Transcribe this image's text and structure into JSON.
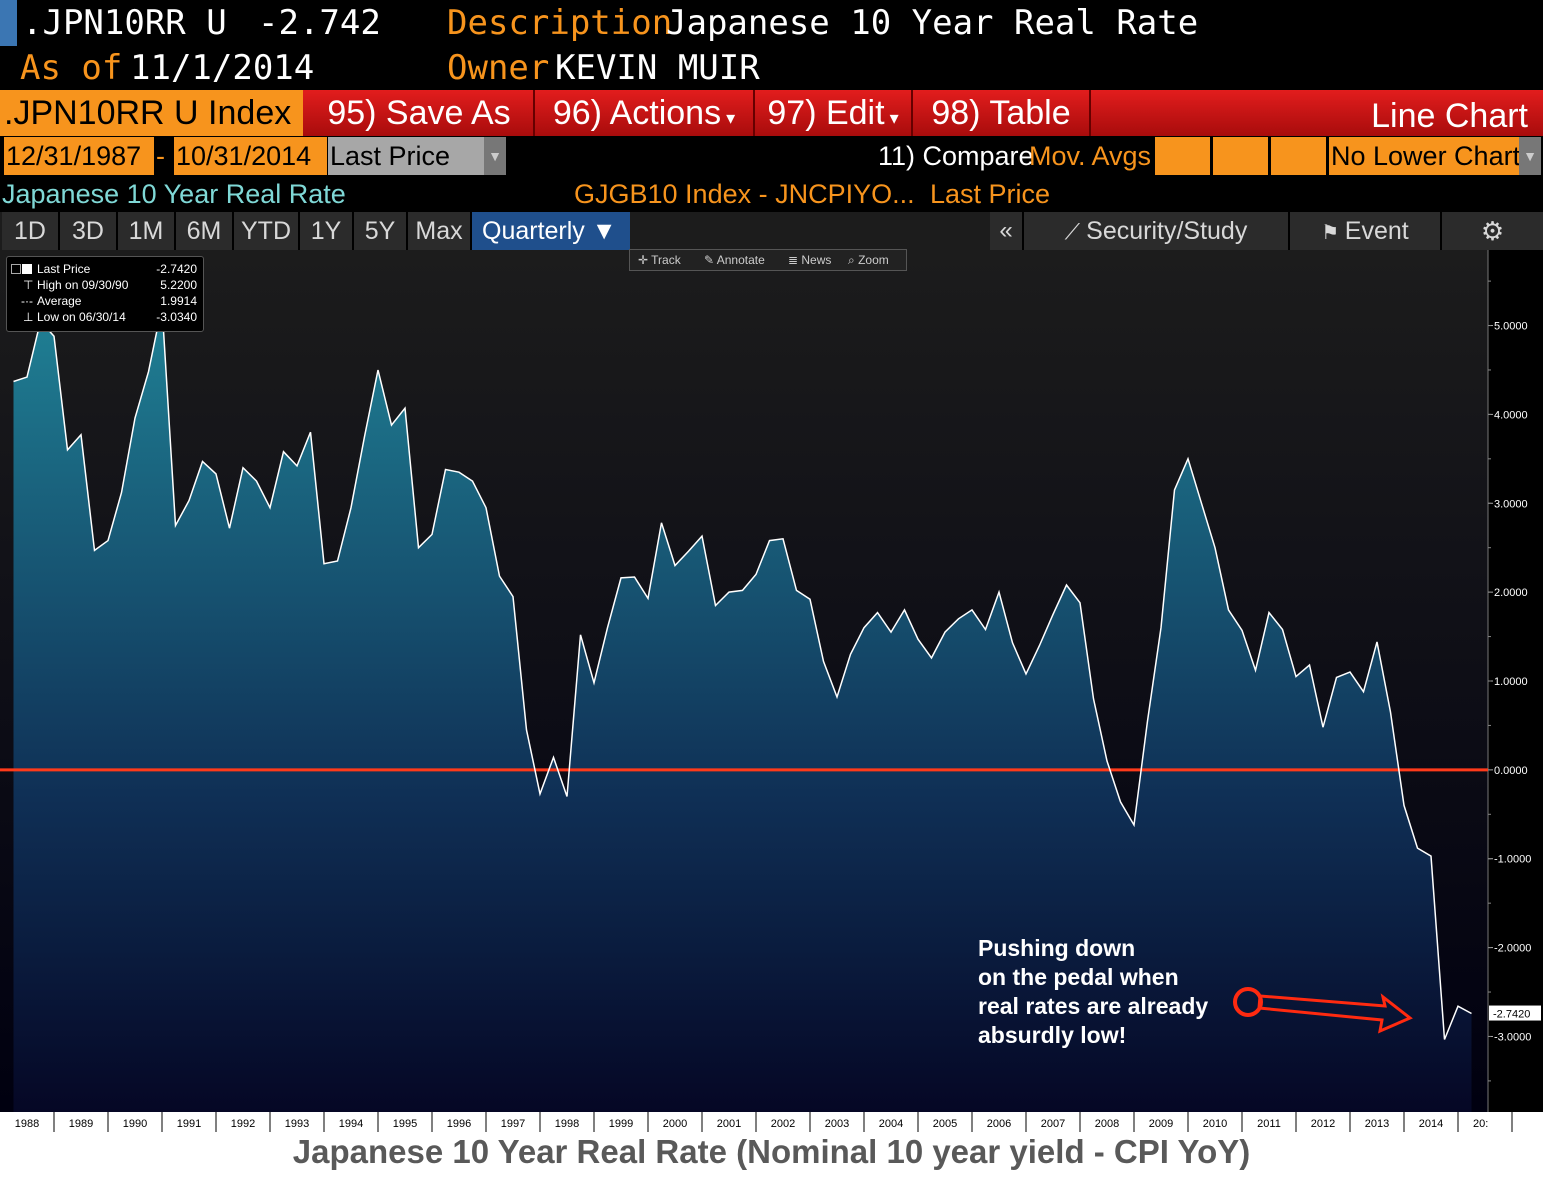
{
  "header": {
    "ticker": ".JPN10RR U",
    "last_value": "-2.742",
    "as_of_label": "As of",
    "as_of_date": "11/1/2014",
    "description_label": "Description",
    "description": "Japanese 10 Year Real Rate",
    "owner_label": "Owner",
    "owner": "KEVIN MUIR"
  },
  "menubar": {
    "index_label": ".JPN10RR U Index",
    "save_as": "95) Save As",
    "actions": "96) Actions",
    "edit": "97) Edit",
    "table": "98) Table",
    "chart_type": "Line Chart"
  },
  "daterow": {
    "start_date": "12/31/1987",
    "separator": "-",
    "end_date": "10/31/2014",
    "field": "Last Price",
    "compare": "11) Compare",
    "mov_avgs": "Mov. Avgs",
    "lower_chart": "No Lower Chart"
  },
  "legendrow": {
    "series_title": "Japanese 10 Year Real Rate",
    "formula": "GJGB10 Index - JNCPIYO...",
    "field": "Last Price"
  },
  "periods": {
    "buttons": [
      "1D",
      "3D",
      "1M",
      "6M",
      "YTD",
      "1Y",
      "5Y",
      "Max"
    ],
    "selected": "Quarterly ▼",
    "collapse": "«",
    "security_study": "Security/Study",
    "event": "Event"
  },
  "chart_toolbar": {
    "track": "Track",
    "annotate": "Annotate",
    "news": "News",
    "zoom": "Zoom"
  },
  "stats_legend": {
    "last_price_label": "Last Price",
    "last_price": "-2.7420",
    "high_label": "High on 09/30/90",
    "high": "5.2200",
    "average_label": "Average",
    "average": "1.9914",
    "low_label": "Low on 06/30/14",
    "low": "-3.0340"
  },
  "annotation": {
    "line1": "Pushing down",
    "line2": "on the pedal when",
    "line3": "real rates are already",
    "line4": "absurdly low!"
  },
  "caption": "Japanese 10 Year Real Rate (Nominal 10 year yield - CPI YoY)",
  "colors": {
    "orange": "#f7941d",
    "red_bar": "#d31515",
    "zero_line": "#ff3a1a",
    "area_top": "#1e7a8e",
    "area_bottom": "#060a2a",
    "line": "#ffffff",
    "bg_top": "#1a1a1a",
    "bg_bottom": "#000018"
  },
  "chart_data": {
    "type": "area",
    "ylim": [
      -3.85,
      5.85
    ],
    "yticks": [
      "5.0000",
      "4.0000",
      "3.0000",
      "2.0000",
      "1.0000",
      "0.0000",
      "-1.0000",
      "-2.0000",
      "-3.0000"
    ],
    "ytick_values": [
      5,
      4,
      3,
      2,
      1,
      0,
      -1,
      -2,
      -3
    ],
    "last_value_label": "-2.7420",
    "last_value": -2.742,
    "reference_line": 0,
    "x_labels": [
      "1988",
      "1989",
      "1990",
      "1991",
      "1992",
      "1993",
      "1994",
      "1995",
      "1996",
      "1997",
      "1998",
      "1999",
      "2000",
      "2001",
      "2002",
      "2003",
      "2004",
      "2005",
      "2006",
      "2007",
      "2008",
      "2009",
      "2010",
      "2011",
      "2012",
      "2013",
      "2014",
      "20:"
    ],
    "x_start_year": 1987.75,
    "points": [
      [
        1987.75,
        4.37
      ],
      [
        1988.0,
        4.42
      ],
      [
        1988.25,
        5.05
      ],
      [
        1988.5,
        4.88
      ],
      [
        1988.75,
        3.6
      ],
      [
        1989.0,
        3.77
      ],
      [
        1989.25,
        2.47
      ],
      [
        1989.5,
        2.58
      ],
      [
        1989.75,
        3.12
      ],
      [
        1990.0,
        3.96
      ],
      [
        1990.25,
        4.48
      ],
      [
        1990.5,
        5.22
      ],
      [
        1990.75,
        2.75
      ],
      [
        1991.0,
        3.03
      ],
      [
        1991.25,
        3.47
      ],
      [
        1991.5,
        3.33
      ],
      [
        1991.75,
        2.72
      ],
      [
        1992.0,
        3.4
      ],
      [
        1992.25,
        3.25
      ],
      [
        1992.5,
        2.95
      ],
      [
        1992.75,
        3.58
      ],
      [
        1993.0,
        3.42
      ],
      [
        1993.25,
        3.8
      ],
      [
        1993.5,
        2.32
      ],
      [
        1993.75,
        2.35
      ],
      [
        1994.0,
        2.95
      ],
      [
        1994.25,
        3.75
      ],
      [
        1994.5,
        4.5
      ],
      [
        1994.75,
        3.88
      ],
      [
        1995.0,
        4.07
      ],
      [
        1995.25,
        2.5
      ],
      [
        1995.5,
        2.65
      ],
      [
        1995.75,
        3.38
      ],
      [
        1996.0,
        3.35
      ],
      [
        1996.25,
        3.25
      ],
      [
        1996.5,
        2.95
      ],
      [
        1996.75,
        2.18
      ],
      [
        1997.0,
        1.95
      ],
      [
        1997.25,
        0.45
      ],
      [
        1997.5,
        -0.27
      ],
      [
        1997.75,
        0.14
      ],
      [
        1998.0,
        -0.3
      ],
      [
        1998.25,
        1.52
      ],
      [
        1998.5,
        0.98
      ],
      [
        1998.75,
        1.6
      ],
      [
        1999.0,
        2.16
      ],
      [
        1999.25,
        2.17
      ],
      [
        1999.5,
        1.93
      ],
      [
        1999.75,
        2.78
      ],
      [
        2000.0,
        2.3
      ],
      [
        2000.25,
        2.46
      ],
      [
        2000.5,
        2.63
      ],
      [
        2000.75,
        1.85
      ],
      [
        2001.0,
        2.0
      ],
      [
        2001.25,
        2.02
      ],
      [
        2001.5,
        2.2
      ],
      [
        2001.75,
        2.58
      ],
      [
        2002.0,
        2.6
      ],
      [
        2002.25,
        2.02
      ],
      [
        2002.5,
        1.92
      ],
      [
        2002.75,
        1.22
      ],
      [
        2003.0,
        0.82
      ],
      [
        2003.25,
        1.3
      ],
      [
        2003.5,
        1.6
      ],
      [
        2003.75,
        1.77
      ],
      [
        2004.0,
        1.55
      ],
      [
        2004.25,
        1.8
      ],
      [
        2004.5,
        1.47
      ],
      [
        2004.75,
        1.26
      ],
      [
        2005.0,
        1.55
      ],
      [
        2005.25,
        1.7
      ],
      [
        2005.5,
        1.8
      ],
      [
        2005.75,
        1.58
      ],
      [
        2006.0,
        2.0
      ],
      [
        2006.25,
        1.43
      ],
      [
        2006.5,
        1.08
      ],
      [
        2006.75,
        1.4
      ],
      [
        2007.0,
        1.75
      ],
      [
        2007.25,
        2.08
      ],
      [
        2007.5,
        1.88
      ],
      [
        2007.75,
        0.8
      ],
      [
        2008.0,
        0.1
      ],
      [
        2008.25,
        -0.36
      ],
      [
        2008.5,
        -0.62
      ],
      [
        2008.75,
        0.55
      ],
      [
        2009.0,
        1.6
      ],
      [
        2009.25,
        3.15
      ],
      [
        2009.5,
        3.5
      ],
      [
        2009.75,
        3.0
      ],
      [
        2010.0,
        2.5
      ],
      [
        2010.25,
        1.8
      ],
      [
        2010.5,
        1.57
      ],
      [
        2010.75,
        1.12
      ],
      [
        2011.0,
        1.77
      ],
      [
        2011.25,
        1.58
      ],
      [
        2011.5,
        1.05
      ],
      [
        2011.75,
        1.18
      ],
      [
        2012.0,
        0.48
      ],
      [
        2012.25,
        1.04
      ],
      [
        2012.5,
        1.1
      ],
      [
        2012.75,
        0.88
      ],
      [
        2013.0,
        1.44
      ],
      [
        2013.25,
        0.65
      ],
      [
        2013.5,
        -0.4
      ],
      [
        2013.75,
        -0.88
      ],
      [
        2014.0,
        -0.97
      ],
      [
        2014.25,
        -3.034
      ],
      [
        2014.5,
        -2.66
      ],
      [
        2014.75,
        -2.742
      ]
    ]
  }
}
